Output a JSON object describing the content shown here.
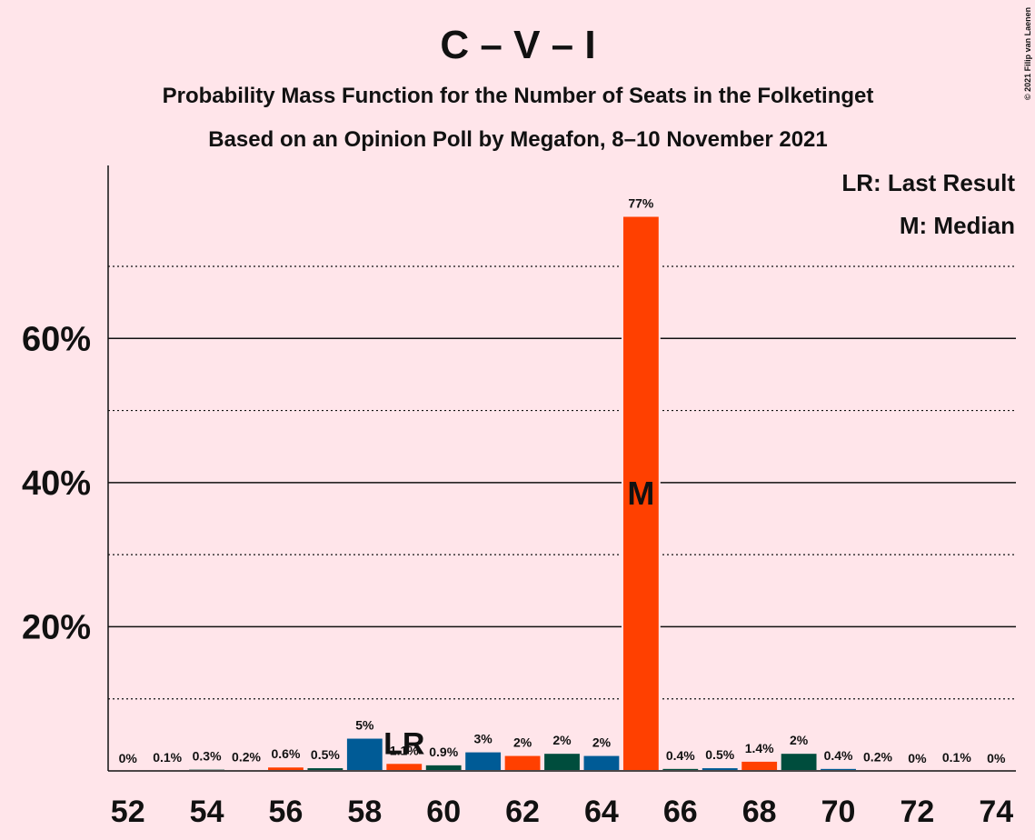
{
  "chart_data": {
    "type": "bar",
    "title": "C – V – I",
    "subtitle": "Probability Mass Function for the Number of Seats in the Folketinget",
    "subtitle2": "Based on an Opinion Poll by Megafon, 8–10 November 2021",
    "copyright": "© 2021 Filip van Laenen",
    "legend": [
      "LR: Last Result",
      "M: Median"
    ],
    "legend_corner": "top-right",
    "x": [
      52,
      53,
      54,
      55,
      56,
      57,
      58,
      59,
      60,
      61,
      62,
      63,
      64,
      65,
      66,
      67,
      68,
      69,
      70,
      71,
      72,
      73,
      74
    ],
    "values": [
      0,
      0.1,
      0.3,
      0.2,
      0.6,
      0.5,
      4.6,
      1.1,
      0.9,
      2.7,
      2.2,
      2.5,
      2.2,
      77,
      0.4,
      0.5,
      1.4,
      2.5,
      0.4,
      0.2,
      0,
      0.1,
      0
    ],
    "value_labels": [
      "0%",
      "0.1%",
      "0.3%",
      "0.2%",
      "0.6%",
      "0.5%",
      "5%",
      "1.1%",
      "0.9%",
      "3%",
      "2%",
      "2%",
      "2%",
      "77%",
      "0.4%",
      "0.5%",
      "1.4%",
      "2%",
      "0.4%",
      "0.2%",
      "0%",
      "0.1%",
      "0%"
    ],
    "colors": [
      "#005b96",
      "#ff4000",
      "#004d3d",
      "#005b96",
      "#ff4000",
      "#004d3d",
      "#005b96",
      "#ff4000",
      "#004d3d",
      "#005b96",
      "#ff4000",
      "#004d3d",
      "#005b96",
      "#ff4000",
      "#004d3d",
      "#005b96",
      "#ff4000",
      "#004d3d",
      "#005b96",
      "#ff4000",
      "#004d3d",
      "#005b96",
      "#ff4000"
    ],
    "xlim": [
      51.5,
      74.5
    ],
    "xticks": [
      52,
      54,
      56,
      58,
      60,
      62,
      64,
      66,
      68,
      70,
      72,
      74
    ],
    "ylim": [
      0,
      84
    ],
    "yticks": [
      {
        "value": 20,
        "label": "20%"
      },
      {
        "value": 40,
        "label": "40%"
      },
      {
        "value": 60,
        "label": "60%"
      }
    ],
    "minor_gridlines": [
      10,
      30,
      50,
      70
    ],
    "annotations": [
      {
        "x": 59,
        "text": "LR"
      },
      {
        "x": 65,
        "text": "M"
      }
    ]
  }
}
